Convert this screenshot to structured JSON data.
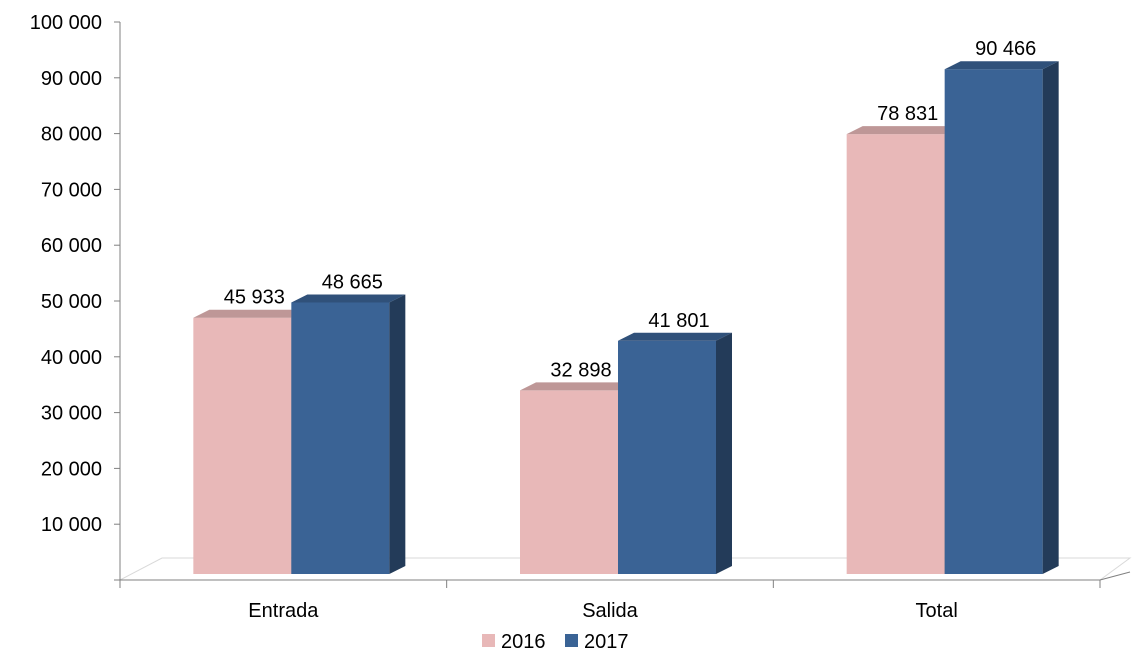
{
  "chart_data": {
    "type": "bar",
    "categories": [
      "Entrada",
      "Salida",
      "Total"
    ],
    "series": [
      {
        "name": "2016",
        "values": [
          45933,
          32898,
          78831
        ],
        "color": "#E8B8B8"
      },
      {
        "name": "2017",
        "values": [
          48665,
          41801,
          90466
        ],
        "color": "#3A6395"
      }
    ],
    "data_labels": [
      [
        "45 933",
        "32 898",
        "78 831"
      ],
      [
        "48 665",
        "41 801",
        "90 466"
      ]
    ],
    "y_ticks": [
      10000,
      20000,
      30000,
      40000,
      50000,
      60000,
      70000,
      80000,
      90000,
      100000
    ],
    "y_tick_labels": [
      "10 000",
      "20 000",
      "30 000",
      "40 000",
      "50 000",
      "60 000",
      "70 000",
      "80 000",
      "90 000",
      "100 000"
    ],
    "ylim": [
      0,
      100000
    ],
    "grid": false,
    "legend_position": "bottom",
    "style": "3d-clustered-column"
  }
}
